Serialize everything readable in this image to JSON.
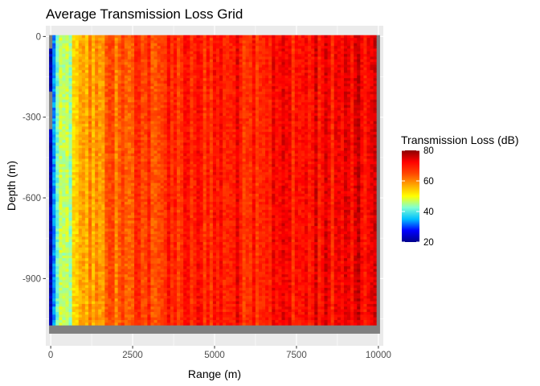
{
  "chart_data": {
    "type": "heatmap",
    "title": "Average Transmission Loss Grid",
    "xlabel": "Range (m)",
    "ylabel": "Depth (m)",
    "xlim": [
      -150,
      10150
    ],
    "ylim": [
      -1150,
      40
    ],
    "x_ticks": [
      0,
      2500,
      5000,
      7500,
      10000
    ],
    "x_tick_labels": [
      "0",
      "2500",
      "5000",
      "7500",
      "10000"
    ],
    "y_ticks": [
      0,
      -300,
      -600,
      -900
    ],
    "y_tick_labels": [
      "0",
      "-300",
      "-600",
      "-900"
    ],
    "grid": true,
    "legend": {
      "title": "Transmission Loss (dB)",
      "placement": "right",
      "min": 20,
      "max": 80,
      "ticks": [
        20,
        40,
        60,
        80
      ],
      "tick_labels": [
        "20",
        "40",
        "60",
        "80"
      ],
      "colors": [
        "#00008b",
        "#0000ff",
        "#00bfff",
        "#7fffd4",
        "#ffff00",
        "#ffa500",
        "#ff4500",
        "#ff0000",
        "#8b0000"
      ]
    },
    "grid_extent": {
      "range_min": 0,
      "range_max": 10000,
      "depth_min": -1100,
      "depth_max": 0,
      "range_step": 100,
      "depth_step": 10
    },
    "na_color": "#808080",
    "na_depth_band": [
      -1100,
      -1080
    ],
    "range_profile": {
      "range_m": [
        0,
        100,
        200,
        400,
        600,
        800,
        1000,
        1200,
        1500,
        2000,
        3000,
        4000,
        5000,
        6000,
        7000,
        8000,
        9000,
        10000
      ],
      "mean_tl_db": [
        22,
        33,
        41,
        44,
        47,
        52,
        56,
        58,
        60,
        63,
        66,
        68,
        70,
        70,
        71,
        71,
        72,
        72
      ]
    }
  }
}
